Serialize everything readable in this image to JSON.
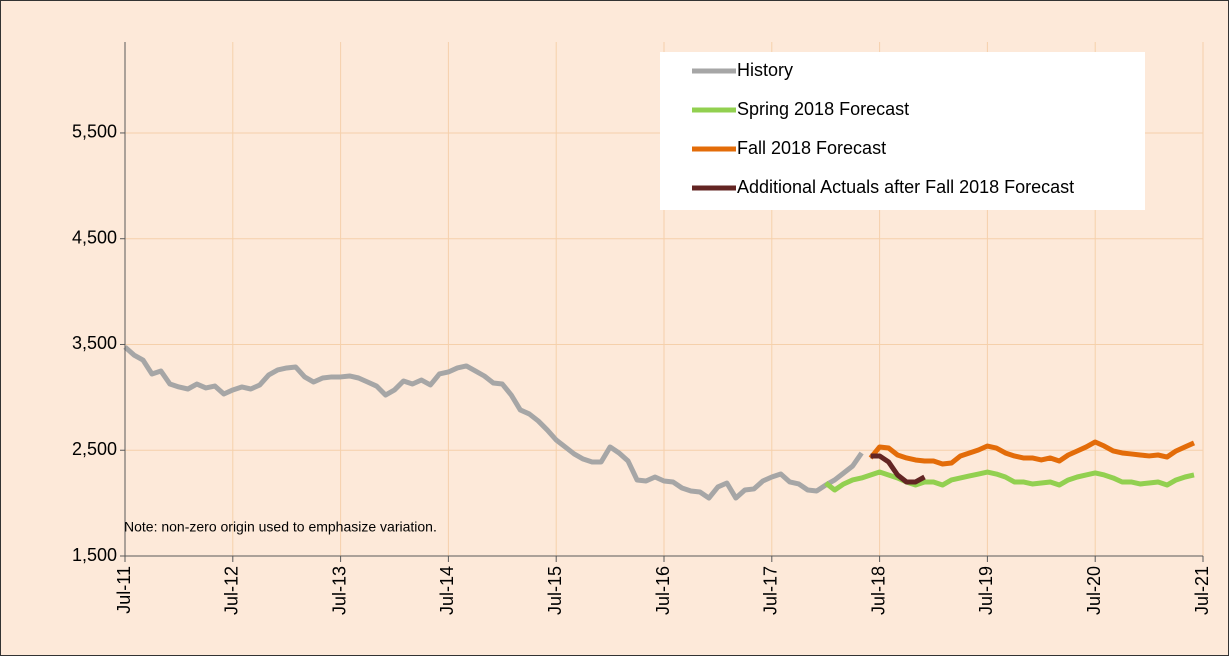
{
  "chart_data": {
    "type": "line",
    "note": "Note: non-zero origin used to emphasize variation.",
    "categories": [
      "Jul-11",
      null,
      null,
      null,
      null,
      null,
      null,
      null,
      null,
      null,
      null,
      null,
      "Jul-12",
      null,
      null,
      null,
      null,
      null,
      null,
      null,
      null,
      null,
      null,
      null,
      "Jul-13",
      null,
      null,
      null,
      null,
      null,
      null,
      null,
      null,
      null,
      null,
      null,
      "Jul-14",
      null,
      null,
      null,
      null,
      null,
      null,
      null,
      null,
      null,
      null,
      null,
      "Jul-15",
      null,
      null,
      null,
      null,
      null,
      null,
      null,
      null,
      null,
      null,
      null,
      "Jul-16",
      null,
      null,
      null,
      null,
      null,
      null,
      null,
      null,
      null,
      null,
      null,
      "Jul-17",
      null,
      null,
      null,
      null,
      null,
      null,
      null,
      null,
      null,
      null,
      null,
      "Jul-18",
      null,
      null,
      null,
      null,
      null,
      null,
      null,
      null,
      null,
      null,
      null,
      "Jul-19",
      null,
      null,
      null,
      null,
      null,
      null,
      null,
      null,
      null,
      null,
      null,
      "Jul-20",
      null,
      null,
      null,
      null,
      null,
      null,
      null,
      null,
      null,
      null,
      null,
      "Jul-21"
    ],
    "series": [
      {
        "name": "History",
        "color": "#a6a6a6",
        "values": [
          3476,
          3400,
          3353,
          3221,
          3249,
          3126,
          3098,
          3079,
          3126,
          3089,
          3107,
          3032,
          3070,
          3098,
          3079,
          3117,
          3212,
          3259,
          3278,
          3287,
          3193,
          3145,
          3183,
          3193,
          3193,
          3202,
          3183,
          3145,
          3107,
          3022,
          3070,
          3155,
          3126,
          3164,
          3117,
          3221,
          3240,
          3278,
          3297,
          3250,
          3202,
          3136,
          3126,
          3022,
          2881,
          2843,
          2777,
          2692,
          2597,
          2531,
          2465,
          2417,
          2389,
          2389,
          2531,
          2474,
          2398,
          2219,
          2209,
          2247,
          2209,
          2200,
          2143,
          2115,
          2105,
          2048,
          2153,
          2190,
          2048,
          2124,
          2134,
          2209,
          2247,
          2275,
          2200,
          2181,
          2124,
          2115,
          2171,
          2219,
          2285,
          2351,
          2474,
          null,
          null,
          null,
          null,
          null,
          null,
          null,
          null,
          null,
          null,
          null,
          null,
          null,
          null,
          null,
          null,
          null,
          null,
          null,
          null,
          null,
          null,
          null,
          null,
          null,
          null,
          null,
          null,
          null,
          null,
          null,
          null,
          null,
          null,
          null,
          null,
          null,
          null
        ]
      },
      {
        "name": "Spring 2018 Forecast",
        "color": "#92d050",
        "values": [
          null,
          null,
          null,
          null,
          null,
          null,
          null,
          null,
          null,
          null,
          null,
          null,
          null,
          null,
          null,
          null,
          null,
          null,
          null,
          null,
          null,
          null,
          null,
          null,
          null,
          null,
          null,
          null,
          null,
          null,
          null,
          null,
          null,
          null,
          null,
          null,
          null,
          null,
          null,
          null,
          null,
          null,
          null,
          null,
          null,
          null,
          null,
          null,
          null,
          null,
          null,
          null,
          null,
          null,
          null,
          null,
          null,
          null,
          null,
          null,
          null,
          null,
          null,
          null,
          null,
          null,
          null,
          null,
          null,
          null,
          null,
          null,
          null,
          null,
          null,
          null,
          null,
          null,
          2190,
          2124,
          2181,
          2219,
          2238,
          2266,
          2294,
          2266,
          2238,
          2200,
          2171,
          2200,
          2200,
          2171,
          2219,
          2238,
          2257,
          2275,
          2294,
          2275,
          2247,
          2200,
          2200,
          2181,
          2190,
          2200,
          2171,
          2219,
          2247,
          2266,
          2285,
          2266,
          2238,
          2200,
          2200,
          2181,
          2190,
          2200,
          2171,
          2219,
          2247,
          2266,
          null
        ]
      },
      {
        "name": "Fall 2018 Forecast",
        "color": "#e36c09",
        "values": [
          null,
          null,
          null,
          null,
          null,
          null,
          null,
          null,
          null,
          null,
          null,
          null,
          null,
          null,
          null,
          null,
          null,
          null,
          null,
          null,
          null,
          null,
          null,
          null,
          null,
          null,
          null,
          null,
          null,
          null,
          null,
          null,
          null,
          null,
          null,
          null,
          null,
          null,
          null,
          null,
          null,
          null,
          null,
          null,
          null,
          null,
          null,
          null,
          null,
          null,
          null,
          null,
          null,
          null,
          null,
          null,
          null,
          null,
          null,
          null,
          null,
          null,
          null,
          null,
          null,
          null,
          null,
          null,
          null,
          null,
          null,
          null,
          null,
          null,
          null,
          null,
          null,
          null,
          null,
          null,
          null,
          null,
          null,
          2427,
          2531,
          2521,
          2455,
          2427,
          2408,
          2398,
          2398,
          2370,
          2379,
          2446,
          2474,
          2502,
          2540,
          2521,
          2474,
          2446,
          2427,
          2427,
          2408,
          2427,
          2398,
          2455,
          2493,
          2531,
          2578,
          2540,
          2493,
          2474,
          2465,
          2455,
          2446,
          2455,
          2436,
          2493,
          2531,
          2569,
          null
        ]
      },
      {
        "name": "Additional Actuals after Fall 2018 Forecast",
        "color": "#632523",
        "values": [
          null,
          null,
          null,
          null,
          null,
          null,
          null,
          null,
          null,
          null,
          null,
          null,
          null,
          null,
          null,
          null,
          null,
          null,
          null,
          null,
          null,
          null,
          null,
          null,
          null,
          null,
          null,
          null,
          null,
          null,
          null,
          null,
          null,
          null,
          null,
          null,
          null,
          null,
          null,
          null,
          null,
          null,
          null,
          null,
          null,
          null,
          null,
          null,
          null,
          null,
          null,
          null,
          null,
          null,
          null,
          null,
          null,
          null,
          null,
          null,
          null,
          null,
          null,
          null,
          null,
          null,
          null,
          null,
          null,
          null,
          null,
          null,
          null,
          null,
          null,
          null,
          null,
          null,
          null,
          null,
          null,
          null,
          null,
          2446,
          2446,
          2389,
          2266,
          2200,
          2200,
          2247,
          null,
          null,
          null,
          null,
          null,
          null,
          null,
          null,
          null,
          null,
          null,
          null,
          null,
          null,
          null,
          null,
          null,
          null,
          null,
          null,
          null,
          null,
          null,
          null,
          null,
          null,
          null,
          null,
          null,
          null,
          null
        ]
      }
    ],
    "ylim": [
      1500,
      6360
    ],
    "yticks": [
      {
        "value": 1500,
        "label": "1,500"
      },
      {
        "value": 2500,
        "label": "2,500"
      },
      {
        "value": 3500,
        "label": "3,500"
      },
      {
        "value": 4500,
        "label": "4,500"
      },
      {
        "value": 5500,
        "label": "5,500"
      }
    ],
    "grid": true,
    "legend": "top-right"
  }
}
